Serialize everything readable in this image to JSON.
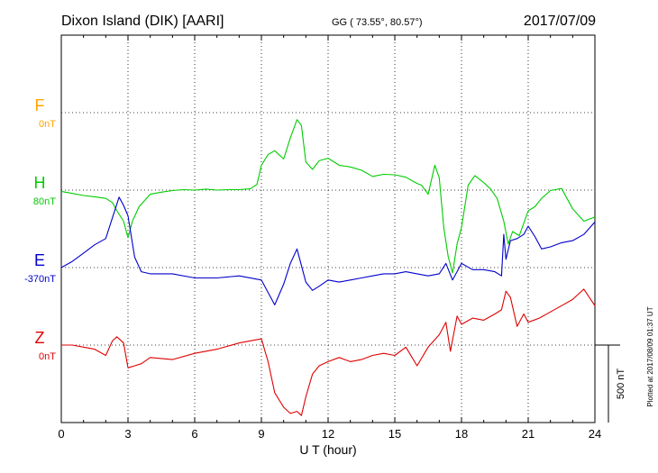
{
  "header": {
    "station": "Dixon Island (DIK)  [AARI]",
    "coords": "GG ( 73.55°,  80.57°)",
    "date": "2017/07/09"
  },
  "footer": {
    "plotted_note": "Plotted at 2017/08/09 01:37 UT"
  },
  "colors": {
    "F": "#ffa500",
    "H": "#00cc00",
    "E": "#0000cc",
    "Z": "#e00000",
    "axis": "#000000"
  },
  "chart_data": {
    "type": "line",
    "title": "",
    "xlabel": "U T (hour)",
    "xlim": [
      0,
      24
    ],
    "x_ticks": [
      "0",
      "3",
      "6",
      "9",
      "12",
      "15",
      "18",
      "21",
      "24"
    ],
    "scale_bar_label": "500 nT",
    "grid": true,
    "channel_labels": [
      {
        "letter": "F",
        "baseline": "0nT",
        "color": "#ffa500"
      },
      {
        "letter": "H",
        "baseline": "80nT",
        "color": "#00cc00"
      },
      {
        "letter": "E",
        "baseline": "-370nT",
        "color": "#0000cc"
      },
      {
        "letter": "Z",
        "baseline": "0nT",
        "color": "#e00000"
      }
    ],
    "series": [
      {
        "name": "H",
        "baseline_nT": 80,
        "x": [
          0,
          0.5,
          1,
          1.5,
          2,
          2.3,
          2.5,
          2.8,
          3,
          3.2,
          3.5,
          4,
          4.5,
          5,
          5.5,
          6,
          6.5,
          7,
          7.5,
          8,
          8.5,
          8.8,
          9,
          9.3,
          9.6,
          10,
          10.3,
          10.6,
          10.8,
          11,
          11.3,
          11.6,
          12,
          12.5,
          13,
          13.5,
          14,
          14.5,
          15,
          15.5,
          16,
          16.2,
          16.5,
          16.8,
          17,
          17.2,
          17.4,
          17.6,
          17.8,
          18,
          18.3,
          18.6,
          19,
          19.3,
          19.6,
          19.9,
          20.1,
          20.3,
          20.6,
          21,
          21.3,
          21.6,
          22,
          22.5,
          23,
          23.5,
          24
        ],
        "y": [
          -6,
          -16,
          -26,
          -32,
          -40,
          -60,
          -100,
          -150,
          -230,
          -150,
          -80,
          -20,
          -10,
          -2,
          2,
          0,
          5,
          0,
          2,
          2,
          6,
          28,
          120,
          172,
          190,
          150,
          252,
          340,
          312,
          136,
          100,
          142,
          154,
          120,
          112,
          96,
          66,
          76,
          74,
          62,
          32,
          24,
          -20,
          120,
          60,
          -180,
          -320,
          -400,
          -260,
          -180,
          24,
          70,
          36,
          6,
          -40,
          -150,
          -260,
          -200,
          -220,
          -100,
          -80,
          -40,
          -2,
          8,
          -90,
          -150,
          -130
        ]
      },
      {
        "name": "E",
        "baseline_nT": -370,
        "x": [
          0,
          0.5,
          1,
          1.5,
          2,
          2.3,
          2.6,
          2.8,
          3,
          3.3,
          3.6,
          4,
          5,
          6,
          7,
          8,
          9,
          9.3,
          9.6,
          10,
          10.3,
          10.6,
          10.8,
          11,
          11.3,
          11.6,
          12,
          12.5,
          13,
          13.5,
          14,
          14.5,
          15,
          15.5,
          16,
          16.5,
          17,
          17.3,
          17.6,
          18,
          18.5,
          19,
          19.5,
          19.8,
          19.9,
          20,
          20.2,
          20.5,
          20.8,
          21,
          21.3,
          21.6,
          22,
          22.5,
          23,
          23.5,
          24
        ],
        "y": [
          0,
          30,
          70,
          110,
          140,
          240,
          340,
          300,
          250,
          50,
          -20,
          -30,
          -30,
          -50,
          -50,
          -40,
          -60,
          -120,
          -180,
          -80,
          20,
          90,
          10,
          -70,
          -110,
          -90,
          -60,
          -70,
          -60,
          -50,
          -40,
          -30,
          -30,
          -20,
          -30,
          -40,
          -30,
          20,
          -60,
          20,
          -10,
          -10,
          -20,
          -40,
          160,
          40,
          130,
          140,
          160,
          200,
          150,
          90,
          100,
          120,
          130,
          160,
          220
        ]
      },
      {
        "name": "Z",
        "baseline_nT": 0,
        "x": [
          0,
          0.5,
          1,
          1.5,
          2,
          2.3,
          2.5,
          2.8,
          3,
          3.3,
          3.6,
          4,
          5,
          6,
          7,
          8,
          9,
          9.3,
          9.6,
          10,
          10.3,
          10.6,
          10.8,
          11,
          11.3,
          11.6,
          12,
          12.5,
          13,
          13.5,
          14,
          14.5,
          15,
          15.5,
          16,
          16.5,
          17,
          17.3,
          17.5,
          17.8,
          18,
          18.5,
          19,
          19.5,
          19.8,
          20,
          20.2,
          20.5,
          20.8,
          21,
          21.5,
          22,
          22.5,
          23,
          23.5,
          24
        ],
        "y": [
          0,
          0,
          -10,
          -20,
          -50,
          20,
          40,
          10,
          -110,
          -100,
          -90,
          -60,
          -70,
          -40,
          -20,
          10,
          30,
          -80,
          -230,
          -300,
          -330,
          -320,
          -340,
          -250,
          -140,
          -100,
          -80,
          -60,
          -80,
          -70,
          -50,
          -40,
          -50,
          -10,
          -100,
          -10,
          50,
          110,
          -30,
          140,
          100,
          130,
          120,
          150,
          170,
          260,
          230,
          90,
          150,
          110,
          130,
          160,
          190,
          220,
          270,
          190
        ]
      }
    ],
    "scale": {
      "nT_per_px": 4.35
    }
  }
}
